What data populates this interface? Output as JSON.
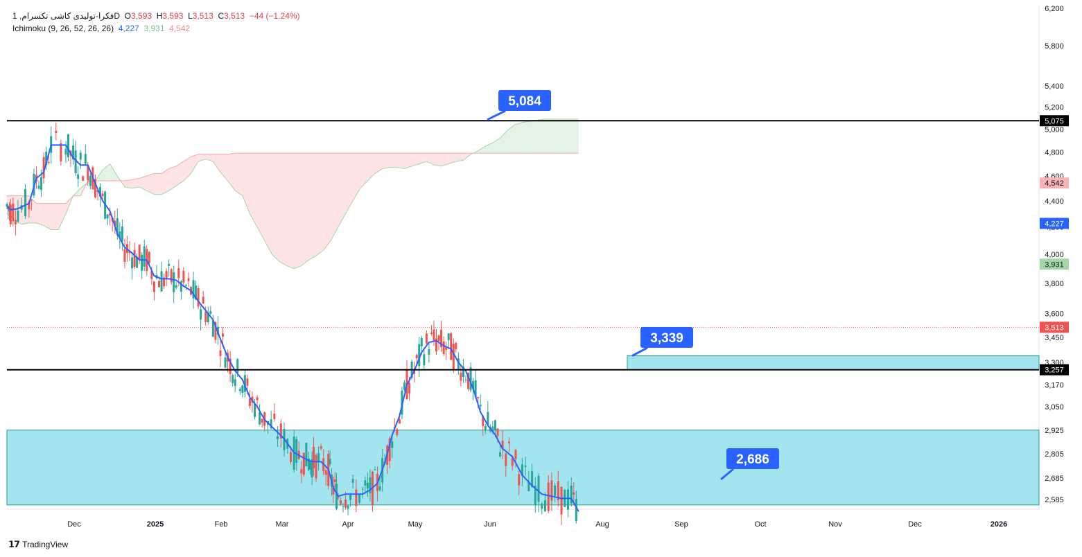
{
  "legend": {
    "symbol": "فکرا-تولیدی کاشی تکسرام, 1D",
    "ohlc_labels": [
      "O",
      "H",
      "L",
      "C"
    ],
    "open": "3,593",
    "high": "3,593",
    "low": "3,513",
    "close": "3,513",
    "change": "−44 (−1.24%)",
    "indicator": "Ichimoku (9, 26, 52, 26, 26)",
    "ind_v1": "4,227",
    "ind_v2": "3,931",
    "ind_v3": "4,542"
  },
  "brand": {
    "name": "TradingView",
    "icon": "tradingview-logo"
  },
  "colors": {
    "up": "#26a69a",
    "down": "#ef5350",
    "baseline": "#2962ff",
    "cloud_bull": "#e3f3e6",
    "cloud_bear": "#fde3e3",
    "zone": "#a3e5ee",
    "zone_border": "#2a9d8f",
    "callout": "#2962ff"
  },
  "chart_data": {
    "type": "candlestick",
    "y_scale": "log",
    "y_ticks": [
      6200,
      5800,
      5400,
      5200,
      5000,
      4800,
      4600,
      4400,
      4200,
      4000,
      3800,
      3600,
      3450,
      3300,
      3170,
      3050,
      2925,
      2805,
      2685,
      2585
    ],
    "x_labels": [
      {
        "label": "Dec",
        "bold": false
      },
      {
        "label": "2025",
        "bold": true
      },
      {
        "label": "Feb",
        "bold": false
      },
      {
        "label": "Mar",
        "bold": false
      },
      {
        "label": "Apr",
        "bold": false
      },
      {
        "label": "May",
        "bold": false
      },
      {
        "label": "Jun",
        "bold": false
      },
      {
        "label": "Aug",
        "bold": false
      },
      {
        "label": "Sep",
        "bold": false
      },
      {
        "label": "Oct",
        "bold": false
      },
      {
        "label": "Nov",
        "bold": false
      },
      {
        "label": "Dec",
        "bold": false
      },
      {
        "label": "2026",
        "bold": true
      }
    ],
    "price_labels": [
      {
        "text": "5,075",
        "value": 5075,
        "style": "black"
      },
      {
        "text": "4,542",
        "value": 4542,
        "style": "pink"
      },
      {
        "text": "4,227",
        "value": 4227,
        "style": "blue"
      },
      {
        "text": "3,931",
        "value": 3931,
        "style": "green"
      },
      {
        "text": "3,513",
        "value": 3513,
        "style": "red"
      },
      {
        "text": "3,257",
        "value": 3257,
        "style": "black"
      }
    ],
    "horizontal_lines": [
      5075,
      3257
    ],
    "last_price": 3513,
    "callouts": [
      {
        "text": "5,084",
        "value": 5084
      },
      {
        "text": "3,339",
        "value": 3339
      },
      {
        "text": "2,686",
        "value": 2686
      }
    ],
    "zones": [
      {
        "from": 3257,
        "to": 3339
      },
      {
        "from": 2560,
        "to": 2925
      }
    ],
    "kijun": [
      [
        0,
        4360
      ],
      [
        3,
        4330
      ],
      [
        9,
        4340
      ],
      [
        18,
        4380
      ],
      [
        24,
        4580
      ],
      [
        30,
        4630
      ],
      [
        36,
        4860
      ],
      [
        48,
        4860
      ],
      [
        54,
        4750
      ],
      [
        60,
        4690
      ],
      [
        66,
        4690
      ],
      [
        72,
        4540
      ],
      [
        78,
        4400
      ],
      [
        84,
        4320
      ],
      [
        90,
        4150
      ],
      [
        96,
        4050
      ],
      [
        102,
        4010
      ],
      [
        108,
        3960
      ],
      [
        114,
        3960
      ],
      [
        120,
        3850
      ],
      [
        126,
        3830
      ],
      [
        132,
        3830
      ],
      [
        138,
        3820
      ],
      [
        144,
        3780
      ],
      [
        150,
        3750
      ],
      [
        156,
        3680
      ],
      [
        162,
        3620
      ],
      [
        168,
        3560
      ],
      [
        174,
        3440
      ],
      [
        180,
        3330
      ],
      [
        186,
        3250
      ],
      [
        192,
        3200
      ],
      [
        198,
        3100
      ],
      [
        204,
        3050
      ],
      [
        210,
        2980
      ],
      [
        218,
        2930
      ],
      [
        226,
        2880
      ],
      [
        234,
        2810
      ],
      [
        240,
        2790
      ],
      [
        246,
        2770
      ],
      [
        250,
        2765
      ],
      [
        256,
        2765
      ],
      [
        262,
        2730
      ],
      [
        266,
        2640
      ],
      [
        270,
        2600
      ],
      [
        276,
        2610
      ],
      [
        282,
        2610
      ],
      [
        290,
        2610
      ],
      [
        296,
        2630
      ],
      [
        302,
        2660
      ],
      [
        308,
        2760
      ],
      [
        314,
        2900
      ],
      [
        320,
        3000
      ],
      [
        326,
        3170
      ],
      [
        332,
        3250
      ],
      [
        338,
        3360
      ],
      [
        344,
        3420
      ],
      [
        350,
        3430
      ],
      [
        356,
        3400
      ],
      [
        362,
        3380
      ],
      [
        368,
        3300
      ],
      [
        374,
        3250
      ],
      [
        380,
        3150
      ],
      [
        386,
        3020
      ],
      [
        392,
        2950
      ],
      [
        398,
        2900
      ],
      [
        404,
        2830
      ],
      [
        412,
        2790
      ],
      [
        420,
        2700
      ],
      [
        428,
        2650
      ],
      [
        436,
        2610
      ],
      [
        444,
        2600
      ],
      [
        452,
        2590
      ],
      [
        460,
        2590
      ],
      [
        466,
        2530
      ]
    ],
    "cloud": {
      "span_a": [
        [
          0,
          4300
        ],
        [
          6,
          4260
        ],
        [
          12,
          4220
        ],
        [
          18,
          4230
        ],
        [
          24,
          4230
        ],
        [
          30,
          4210
        ],
        [
          36,
          4180
        ],
        [
          42,
          4180
        ],
        [
          48,
          4300
        ],
        [
          54,
          4440
        ],
        [
          60,
          4500
        ],
        [
          66,
          4550
        ],
        [
          72,
          4560
        ],
        [
          78,
          4650
        ],
        [
          84,
          4700
        ],
        [
          90,
          4600
        ],
        [
          96,
          4510
        ],
        [
          102,
          4500
        ],
        [
          108,
          4510
        ],
        [
          114,
          4480
        ],
        [
          120,
          4450
        ],
        [
          126,
          4450
        ],
        [
          132,
          4480
        ],
        [
          138,
          4520
        ],
        [
          144,
          4560
        ],
        [
          150,
          4620
        ],
        [
          156,
          4720
        ],
        [
          162,
          4740
        ],
        [
          168,
          4720
        ],
        [
          174,
          4630
        ],
        [
          180,
          4560
        ],
        [
          186,
          4480
        ],
        [
          192,
          4440
        ],
        [
          198,
          4300
        ],
        [
          204,
          4200
        ],
        [
          210,
          4100
        ],
        [
          216,
          4000
        ],
        [
          222,
          3950
        ],
        [
          228,
          3920
        ],
        [
          234,
          3900
        ],
        [
          240,
          3920
        ],
        [
          246,
          3960
        ],
        [
          252,
          3990
        ],
        [
          258,
          4030
        ],
        [
          264,
          4100
        ],
        [
          270,
          4200
        ],
        [
          276,
          4300
        ],
        [
          282,
          4400
        ],
        [
          288,
          4500
        ],
        [
          294,
          4560
        ],
        [
          300,
          4620
        ],
        [
          306,
          4660
        ],
        [
          312,
          4670
        ],
        [
          318,
          4670
        ],
        [
          324,
          4660
        ],
        [
          330,
          4680
        ],
        [
          336,
          4700
        ],
        [
          342,
          4720
        ],
        [
          348,
          4690
        ],
        [
          354,
          4680
        ],
        [
          360,
          4700
        ],
        [
          366,
          4720
        ],
        [
          372,
          4730
        ],
        [
          378,
          4780
        ],
        [
          384,
          4810
        ],
        [
          390,
          4850
        ],
        [
          396,
          4880
        ],
        [
          402,
          4920
        ],
        [
          408,
          4990
        ],
        [
          414,
          5040
        ],
        [
          420,
          5060
        ],
        [
          426,
          5070
        ],
        [
          432,
          5080
        ],
        [
          438,
          5090
        ],
        [
          444,
          5090
        ],
        [
          450,
          5090
        ],
        [
          456,
          5090
        ],
        [
          462,
          5090
        ],
        [
          466,
          5090
        ]
      ],
      "span_b": [
        [
          0,
          4440
        ],
        [
          6,
          4440
        ],
        [
          12,
          4440
        ],
        [
          18,
          4440
        ],
        [
          24,
          4380
        ],
        [
          30,
          4380
        ],
        [
          36,
          4380
        ],
        [
          42,
          4380
        ],
        [
          48,
          4380
        ],
        [
          54,
          4440
        ],
        [
          60,
          4440
        ],
        [
          66,
          4560
        ],
        [
          72,
          4560
        ],
        [
          78,
          4560
        ],
        [
          84,
          4560
        ],
        [
          90,
          4560
        ],
        [
          96,
          4560
        ],
        [
          102,
          4570
        ],
        [
          108,
          4580
        ],
        [
          114,
          4600
        ],
        [
          120,
          4620
        ],
        [
          126,
          4620
        ],
        [
          132,
          4660
        ],
        [
          138,
          4680
        ],
        [
          144,
          4720
        ],
        [
          150,
          4760
        ],
        [
          156,
          4780
        ],
        [
          162,
          4780
        ],
        [
          168,
          4780
        ],
        [
          174,
          4780
        ],
        [
          180,
          4780
        ],
        [
          186,
          4790
        ],
        [
          192,
          4790
        ],
        [
          198,
          4790
        ],
        [
          204,
          4790
        ],
        [
          210,
          4790
        ],
        [
          216,
          4790
        ],
        [
          222,
          4790
        ],
        [
          228,
          4790
        ],
        [
          234,
          4790
        ],
        [
          240,
          4790
        ],
        [
          246,
          4790
        ],
        [
          252,
          4790
        ],
        [
          258,
          4790
        ],
        [
          264,
          4790
        ],
        [
          270,
          4790
        ],
        [
          276,
          4790
        ],
        [
          282,
          4790
        ],
        [
          288,
          4790
        ],
        [
          294,
          4790
        ],
        [
          300,
          4790
        ],
        [
          306,
          4790
        ],
        [
          312,
          4790
        ],
        [
          318,
          4790
        ],
        [
          324,
          4790
        ],
        [
          330,
          4790
        ],
        [
          336,
          4790
        ],
        [
          342,
          4790
        ],
        [
          348,
          4790
        ],
        [
          354,
          4790
        ],
        [
          360,
          4790
        ],
        [
          366,
          4790
        ],
        [
          372,
          4790
        ],
        [
          378,
          4790
        ],
        [
          384,
          4790
        ],
        [
          390,
          4790
        ],
        [
          396,
          4790
        ],
        [
          402,
          4790
        ],
        [
          408,
          4790
        ],
        [
          414,
          4790
        ],
        [
          420,
          4790
        ],
        [
          426,
          4790
        ],
        [
          432,
          4790
        ],
        [
          438,
          4790
        ],
        [
          444,
          4790
        ],
        [
          450,
          4790
        ],
        [
          456,
          4790
        ],
        [
          462,
          4790
        ],
        [
          466,
          4790
        ]
      ]
    }
  }
}
